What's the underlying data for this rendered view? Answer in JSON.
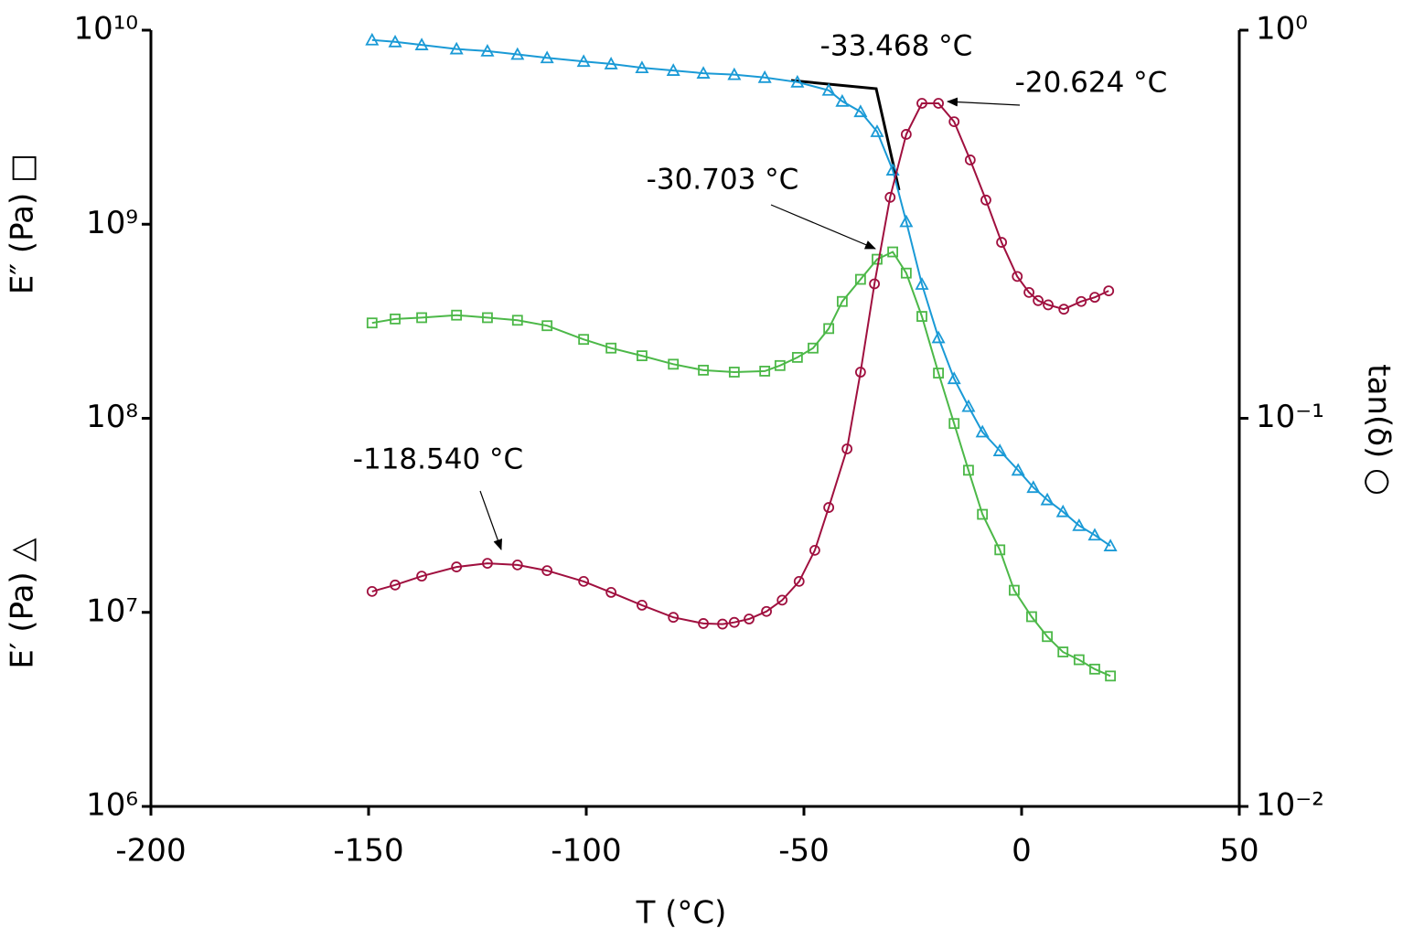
{
  "chart_data": {
    "type": "line",
    "xlabel": "T (°C)",
    "ylabels": [
      {
        "text": "E′ (Pa) △",
        "color": "#1a9ad6"
      },
      {
        "text": "E″ (Pa) □",
        "color": "#4cb848"
      }
    ],
    "y2label": {
      "text": "tan(δ) ○",
      "color": "#a0103f"
    },
    "xlim": [
      -200,
      50
    ],
    "xticks": [
      -200,
      -150,
      -100,
      -50,
      0,
      50
    ],
    "ylim": [
      1000000.0,
      10000000000.0
    ],
    "ylog": true,
    "yticks": [
      {
        "value": 1000000.0,
        "label": "10⁶"
      },
      {
        "value": 10000000.0,
        "label": "10⁷"
      },
      {
        "value": 100000000.0,
        "label": "10⁸"
      },
      {
        "value": 1000000000.0,
        "label": "10⁹"
      },
      {
        "value": 10000000000.0,
        "label": "10¹⁰"
      }
    ],
    "y2lim": [
      0.01,
      1
    ],
    "y2log": true,
    "y2ticks": [
      {
        "value": 0.01,
        "label": "10⁻²"
      },
      {
        "value": 0.1,
        "label": "10⁻¹"
      },
      {
        "value": 1,
        "label": "10⁰"
      }
    ],
    "grid": false,
    "series": [
      {
        "color": "#1a9ad6",
        "marker": "triangle",
        "x": [
          -149.2,
          -143.9,
          -137.8,
          -129.8,
          -122.7,
          -115.8,
          -109.0,
          -100.6,
          -94.3,
          -87.2,
          -80.0,
          -73.1,
          -66.0,
          -59.0,
          -51.5,
          -44.3,
          -41.2,
          -37.0,
          -33.2,
          -29.6,
          -26.5,
          -22.9,
          -19.1,
          -15.5,
          -12.2,
          -9.0,
          -5.0,
          -0.8,
          2.7,
          5.9,
          9.5,
          13.2,
          16.8,
          20.4
        ],
        "values": [
          8900000000.0,
          8700000000.0,
          8400000000.0,
          8000000000.0,
          7800000000.0,
          7500000000.0,
          7200000000.0,
          6900000000.0,
          6700000000.0,
          6400000000.0,
          6200000000.0,
          6000000000.0,
          5900000000.0,
          5700000000.0,
          5400000000.0,
          4900000000.0,
          4300000000.0,
          3800000000.0,
          3000000000.0,
          1900000000.0,
          1030000000.0,
          490000000.0,
          260000000.0,
          160000000.0,
          115000000.0,
          85000000.0,
          68000000.0,
          54000000.0,
          44000000.0,
          38000000.0,
          33000000.0,
          28000000.0,
          25000000.0,
          22000000.0
        ]
      },
      {
        "color": "#4cb848",
        "marker": "square",
        "x": [
          -149.2,
          -143.9,
          -137.8,
          -129.8,
          -122.7,
          -115.8,
          -109.0,
          -100.6,
          -94.3,
          -87.2,
          -80.0,
          -73.1,
          -66.0,
          -59.0,
          -55.5,
          -51.5,
          -47.9,
          -44.3,
          -41.2,
          -37.0,
          -33.2,
          -29.6,
          -26.5,
          -22.9,
          -19.1,
          -15.5,
          -12.2,
          -9.0,
          -5.0,
          -1.7,
          2.3,
          5.9,
          9.5,
          13.2,
          16.8,
          20.4
        ],
        "values": [
          310000000.0,
          325000000.0,
          330000000.0,
          340000000.0,
          330000000.0,
          320000000.0,
          300000000.0,
          255000000.0,
          230000000.0,
          210000000.0,
          190000000.0,
          177000000.0,
          173000000.0,
          175000000.0,
          187000000.0,
          206000000.0,
          230000000.0,
          290000000.0,
          400000000.0,
          520000000.0,
          660000000.0,
          720000000.0,
          560000000.0,
          335000000.0,
          171000000.0,
          94000000.0,
          54000000.0,
          32000000.0,
          21000000.0,
          13000000.0,
          9500000.0,
          7500000.0,
          6250000.0,
          5700000.0,
          5100000.0,
          4700000.0
        ]
      },
      {
        "color": "#a0103f",
        "marker": "circle",
        "axis": "y2",
        "x": [
          -149.2,
          -143.9,
          -137.8,
          -129.8,
          -122.7,
          -115.8,
          -109.0,
          -100.6,
          -94.3,
          -87.2,
          -80.0,
          -73.1,
          -68.7,
          -66.0,
          -62.6,
          -58.6,
          -55.0,
          -51.1,
          -47.5,
          -44.3,
          -40.1,
          -37.0,
          -33.8,
          -30.2,
          -26.5,
          -22.9,
          -19.1,
          -15.5,
          -11.8,
          -8.2,
          -4.6,
          -1.0,
          1.7,
          3.8,
          6.1,
          9.7,
          13.7,
          16.8,
          20.0
        ],
        "values": [
          0.0358,
          0.0372,
          0.0392,
          0.0414,
          0.0423,
          0.0419,
          0.0405,
          0.038,
          0.0356,
          0.033,
          0.0307,
          0.0296,
          0.0295,
          0.0298,
          0.0304,
          0.0318,
          0.034,
          0.038,
          0.0457,
          0.0589,
          0.0834,
          0.1315,
          0.222,
          0.371,
          0.539,
          0.648,
          0.648,
          0.581,
          0.463,
          0.365,
          0.284,
          0.232,
          0.211,
          0.201,
          0.196,
          0.191,
          0.2,
          0.205,
          0.213
        ]
      }
    ],
    "annotations": [
      {
        "text": "-33.468 °C",
        "color": "#1a9ad6"
      },
      {
        "text": "-20.624 °C",
        "color": "#a0103f"
      },
      {
        "text": "-30.703 °C",
        "color": "#4cb848"
      },
      {
        "text": "-118.540 °C",
        "color": "#a0103f"
      }
    ]
  }
}
